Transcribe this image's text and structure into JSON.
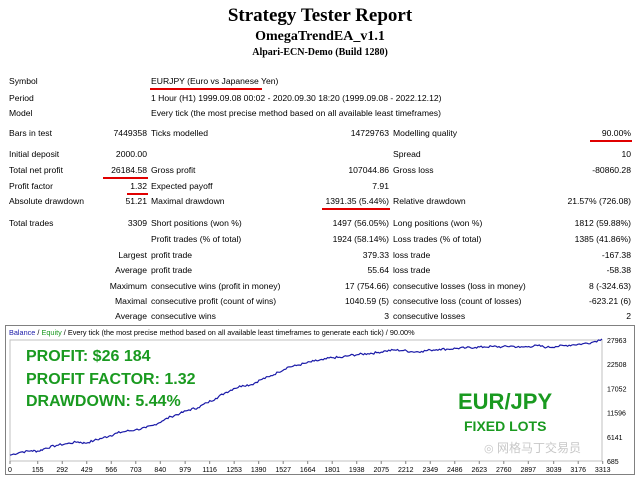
{
  "report": {
    "title": "Strategy Tester Report",
    "ea_name": "OmegaTrendEA_v1.1",
    "server": "Alpari-ECN-Demo (Build 1280)"
  },
  "settings": {
    "symbol_label": "Symbol",
    "symbol_value": "EURJPY (Euro vs Japanese Yen)",
    "period_label": "Period",
    "period_value": "1 Hour (H1) 1999.09.08 00:02 - 2020.09.30 18:20 (1999.09.08 - 2022.12.12)",
    "model_label": "Model",
    "model_value": "Every tick (the most precise method based on all available least timeframes)"
  },
  "stats": {
    "bars_label": "Bars in test",
    "bars_value": "7449358",
    "ticks_label": "Ticks modelled",
    "ticks_value": "14729763",
    "quality_label": "Modelling quality",
    "quality_value": "90.00%",
    "deposit_label": "Initial deposit",
    "deposit_value": "2000.00",
    "spread_label": "Spread",
    "spread_value": "10",
    "net_label": "Total net profit",
    "net_value": "26184.58",
    "gross_profit_label": "Gross profit",
    "gross_profit_value": "107044.86",
    "gross_loss_label": "Gross loss",
    "gross_loss_value": "-80860.28",
    "pf_label": "Profit factor",
    "pf_value": "1.32",
    "payoff_label": "Expected payoff",
    "payoff_value": "7.91",
    "abs_dd_label": "Absolute drawdown",
    "abs_dd_value": "51.21",
    "max_dd_label": "Maximal drawdown",
    "max_dd_value": "1391.35 (5.44%)",
    "rel_dd_label": "Relative drawdown",
    "rel_dd_value": "21.57% (726.08)",
    "trades_label": "Total trades",
    "trades_value": "3309",
    "short_label": "Short positions (won %)",
    "short_value": "1497 (56.05%)",
    "long_label": "Long positions (won %)",
    "long_value": "1812 (59.88%)",
    "ptrades_label": "Profit trades (% of total)",
    "ptrades_value": "1924 (58.14%)",
    "ltrades_label": "Loss trades (% of total)",
    "ltrades_value": "1385 (41.86%)",
    "largest": "Largest",
    "average": "Average",
    "maximum": "Maximum",
    "maximal": "Maximal",
    "profit_trade_label": "profit trade",
    "largest_profit_value": "379.33",
    "loss_trade_label": "loss trade",
    "largest_loss_value": "-167.38",
    "avg_profit_value": "55.64",
    "avg_loss_value": "-58.38",
    "mcw_label": "consecutive wins (profit in money)",
    "mcw_value": "17 (754.66)",
    "mcl_label": "consecutive losses (loss in money)",
    "mcl_value": "8 (-324.63)",
    "mxcp_label": "consecutive profit (count of wins)",
    "mxcp_value": "1040.59 (5)",
    "mxcl_label": "consecutive loss (count of losses)",
    "mxcl_value": "-623.21 (6)",
    "avg_cw_label": "consecutive wins",
    "avg_cw_value": "3",
    "avg_cl_label": "consecutive losses",
    "avg_cl_value": "2"
  },
  "chart_header": {
    "balance": "Balance",
    "sep": " / ",
    "equity": "Equity",
    "rest": " / Every tick (the most precise method based on all available least timeframes to generate each tick) / 90.00%"
  },
  "overlay": {
    "profit_label": "PROFIT: ",
    "profit_value": "$26 184",
    "pf_label": "PROFIT FACTOR: ",
    "pf_value": "1.32",
    "dd_label": "DRAWDOWN: ",
    "dd_value": "5.44%",
    "pair": "EUR/JPY",
    "lots": "FIXED LOTS",
    "watermark": "网格马丁交易员"
  },
  "colors": {
    "underline": "#e00000",
    "balance_line": "#1a1aa8",
    "overlay_green": "#1a9a20",
    "equity_label": "#1a9a20",
    "balance_label": "#1a1aa8"
  },
  "chart_data": {
    "type": "line",
    "x_ticks": [
      "0",
      "155",
      "292",
      "429",
      "566",
      "703",
      "840",
      "979",
      "1116",
      "1253",
      "1390",
      "1527",
      "1664",
      "1801",
      "1938",
      "2075",
      "2212",
      "2349",
      "2486",
      "2623",
      "2760",
      "2897",
      "3039",
      "3176",
      "3313"
    ],
    "y_ticks": [
      "27963",
      "22508",
      "17052",
      "11596",
      "6141",
      "685"
    ],
    "ylim": [
      685,
      27963
    ],
    "xlim": [
      0,
      3309
    ],
    "series": [
      {
        "name": "Balance",
        "x": [
          0,
          60,
          120,
          160,
          200,
          260,
          320,
          380,
          420,
          470,
          520,
          560,
          600,
          650,
          700,
          760,
          800,
          850,
          900,
          950,
          1000,
          1050,
          1100,
          1150,
          1200,
          1250,
          1300,
          1350,
          1400,
          1450,
          1500,
          1550,
          1600,
          1650,
          1700,
          1750,
          1800,
          1850,
          1900,
          1950,
          2000,
          2050,
          2100,
          2150,
          2200,
          2250,
          2300,
          2350,
          2400,
          2450,
          2500,
          2550,
          2600,
          2650,
          2700,
          2750,
          2800,
          2850,
          2900,
          2950,
          3000,
          3050,
          3100,
          3150,
          3200,
          3250,
          3309
        ],
        "y": [
          2000,
          2700,
          3000,
          2900,
          3600,
          4200,
          4600,
          5000,
          4700,
          5300,
          5900,
          6400,
          7000,
          7400,
          7700,
          8200,
          8700,
          9700,
          10700,
          11400,
          12200,
          12700,
          13800,
          14800,
          16000,
          17000,
          17700,
          17900,
          19000,
          19700,
          20700,
          21800,
          22200,
          22700,
          23200,
          23500,
          24000,
          24000,
          24500,
          24700,
          24900,
          25100,
          25500,
          25700,
          25600,
          25300,
          25400,
          25700,
          25900,
          25900,
          26100,
          26200,
          26300,
          26400,
          26500,
          26400,
          26600,
          26300,
          26500,
          26700,
          26300,
          26500,
          26700,
          26900,
          27100,
          27400,
          28184
        ]
      }
    ]
  }
}
